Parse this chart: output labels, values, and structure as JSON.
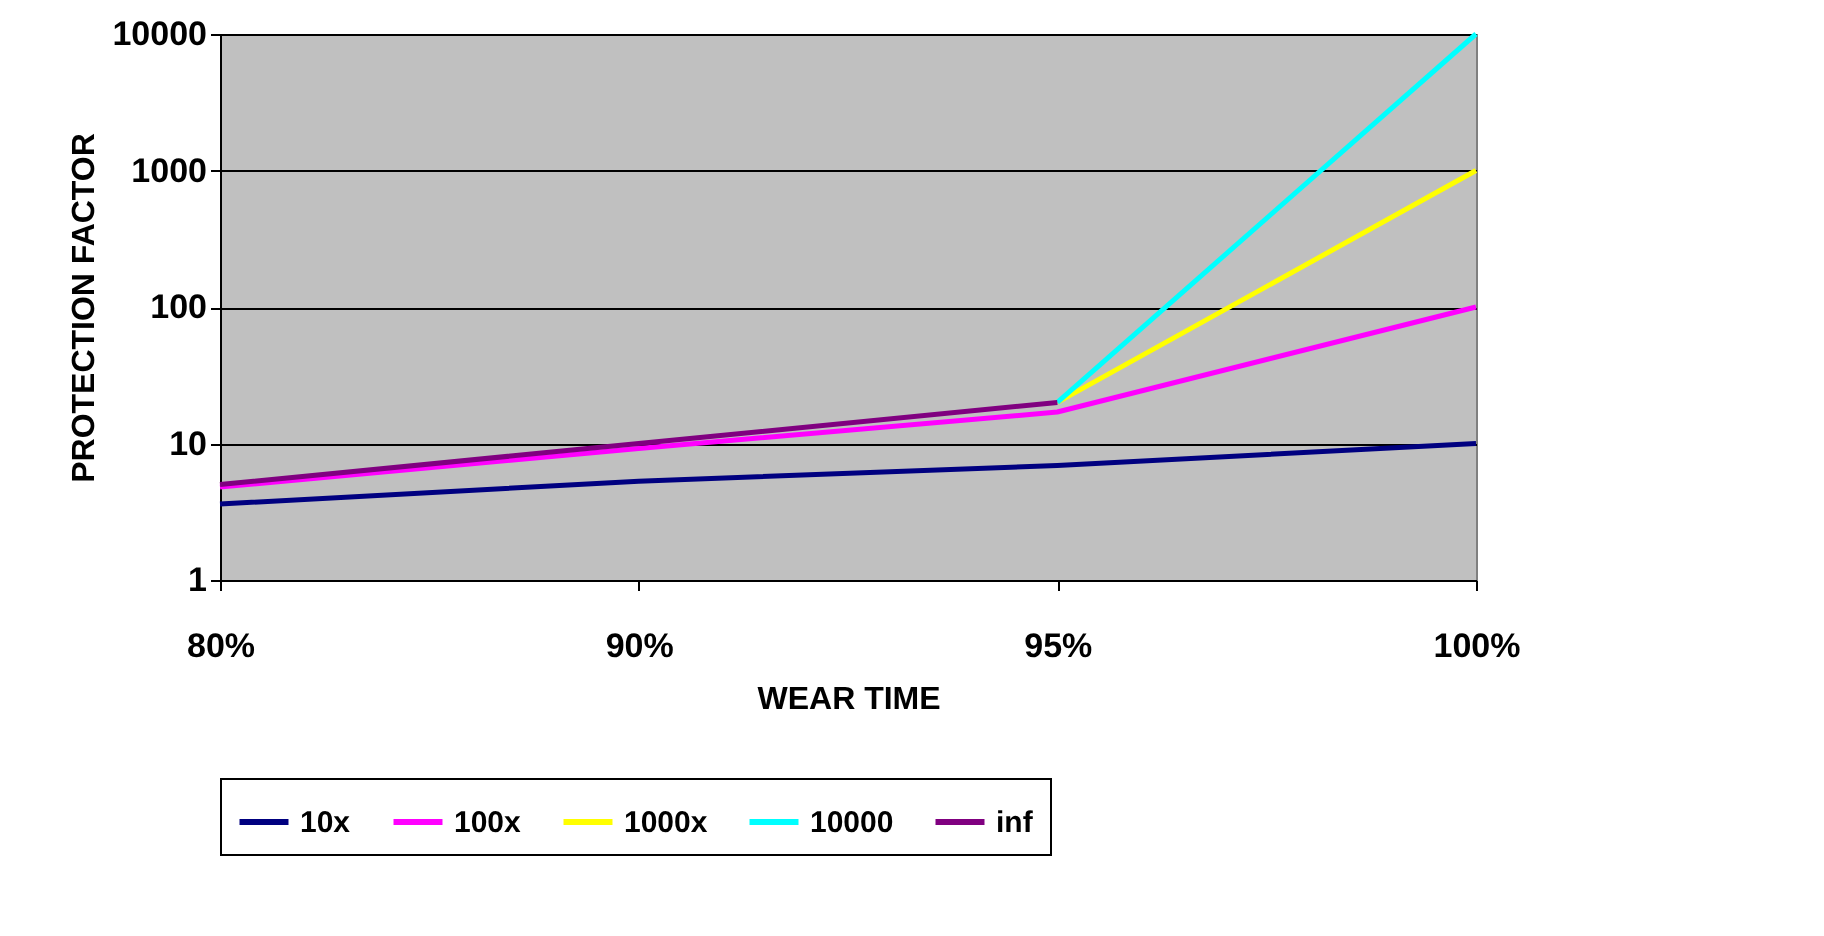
{
  "chart_data": {
    "type": "line",
    "xlabel": "WEAR TIME",
    "ylabel": "PROTECTION FACTOR",
    "categories": [
      "80%",
      "90%",
      "95%",
      "100%"
    ],
    "series": [
      {
        "name": "10x",
        "color": "#000080",
        "values": [
          3.6,
          5.3,
          6.9,
          10
        ]
      },
      {
        "name": "100x",
        "color": "#ff00ff",
        "values": [
          4.8,
          9.2,
          17,
          100
        ]
      },
      {
        "name": "1000x",
        "color": "#ffff00",
        "values": [
          null,
          null,
          20,
          1000
        ]
      },
      {
        "name": "10000",
        "color": "#00ffff",
        "values": [
          null,
          null,
          20,
          10000
        ]
      },
      {
        "name": "inf",
        "color": "#800080",
        "values": [
          5,
          10,
          20,
          null
        ]
      }
    ],
    "log": true,
    "ylim": [
      1,
      10000
    ],
    "yticks": [
      1,
      10,
      100,
      1000,
      10000
    ],
    "grid": "y",
    "legend": "bottom",
    "marker": "none",
    "line_style": "solid"
  }
}
